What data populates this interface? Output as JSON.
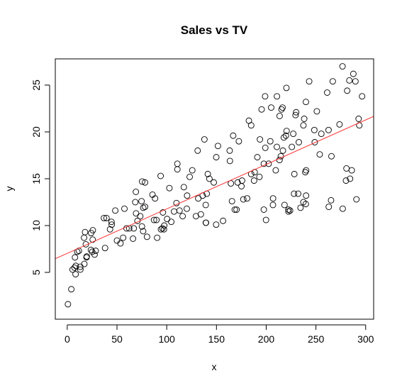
{
  "chart_data": {
    "type": "scatter",
    "title": "Sales vs TV",
    "xlabel": "x",
    "ylabel": "y",
    "xlim": [
      -12,
      308
    ],
    "ylim": [
      0,
      27.8
    ],
    "x_ticks": [
      0,
      50,
      100,
      150,
      200,
      250,
      300
    ],
    "y_ticks": [
      5,
      10,
      15,
      20,
      25
    ],
    "grid": false,
    "legend": "none",
    "point_style": "open-circle",
    "point_color": "#000000",
    "fit_line": {
      "intercept": 7.03,
      "slope": 0.0475,
      "color": "#ff3030"
    },
    "points": [
      [
        0.7,
        1.6
      ],
      [
        4.1,
        3.2
      ],
      [
        5.4,
        5.3
      ],
      [
        7.3,
        5.5
      ],
      [
        7.8,
        6.6
      ],
      [
        8.4,
        4.8
      ],
      [
        8.6,
        5.7
      ],
      [
        10.1,
        7.2
      ],
      [
        11.7,
        7.3
      ],
      [
        13.1,
        5.6
      ],
      [
        13.2,
        5.3
      ],
      [
        16.9,
        8.7
      ],
      [
        17.2,
        5.9
      ],
      [
        17.9,
        9.3
      ],
      [
        18.7,
        8.0
      ],
      [
        19.4,
        6.6
      ],
      [
        19.6,
        6.7
      ],
      [
        23.8,
        7.4
      ],
      [
        24.0,
        9.2
      ],
      [
        25.1,
        7.2
      ],
      [
        25.6,
        8.5
      ],
      [
        25.7,
        9.5
      ],
      [
        27.5,
        6.9
      ],
      [
        28.6,
        7.3
      ],
      [
        36.9,
        10.8
      ],
      [
        38.0,
        7.6
      ],
      [
        39.5,
        10.8
      ],
      [
        43.0,
        9.6
      ],
      [
        44.5,
        10.4
      ],
      [
        44.7,
        10.1
      ],
      [
        48.3,
        11.6
      ],
      [
        50.0,
        8.4
      ],
      [
        53.5,
        8.1
      ],
      [
        56.2,
        8.7
      ],
      [
        57.5,
        11.8
      ],
      [
        59.6,
        9.7
      ],
      [
        62.3,
        9.7
      ],
      [
        66.1,
        8.6
      ],
      [
        66.9,
        9.7
      ],
      [
        68.4,
        12.5
      ],
      [
        69.0,
        13.6
      ],
      [
        69.2,
        11.3
      ],
      [
        70.6,
        10.5
      ],
      [
        73.4,
        11.0
      ],
      [
        74.7,
        12.6
      ],
      [
        75.1,
        9.9
      ],
      [
        75.3,
        14.7
      ],
      [
        76.3,
        9.4
      ],
      [
        76.4,
        11.9
      ],
      [
        78.2,
        12.0
      ],
      [
        78.2,
        14.6
      ],
      [
        80.2,
        8.8
      ],
      [
        85.7,
        13.3
      ],
      [
        87.2,
        10.6
      ],
      [
        88.3,
        12.9
      ],
      [
        89.7,
        10.6
      ],
      [
        90.4,
        8.7
      ],
      [
        93.9,
        15.3
      ],
      [
        94.2,
        9.6
      ],
      [
        95.7,
        9.7
      ],
      [
        96.2,
        11.4
      ],
      [
        97.2,
        9.6
      ],
      [
        97.5,
        10.0
      ],
      [
        100.4,
        10.7
      ],
      [
        102.7,
        14.0
      ],
      [
        104.6,
        10.4
      ],
      [
        107.4,
        11.5
      ],
      [
        109.8,
        12.4
      ],
      [
        110.7,
        16.0
      ],
      [
        110.7,
        16.6
      ],
      [
        112.9,
        11.6
      ],
      [
        116.0,
        11.0
      ],
      [
        117.2,
        14.1
      ],
      [
        120.2,
        11.8
      ],
      [
        120.5,
        13.2
      ],
      [
        123.1,
        15.2
      ],
      [
        125.7,
        15.9
      ],
      [
        129.4,
        11.0
      ],
      [
        131.1,
        18.0
      ],
      [
        131.7,
        12.9
      ],
      [
        134.3,
        11.2
      ],
      [
        136.2,
        13.2
      ],
      [
        137.9,
        19.2
      ],
      [
        139.2,
        12.2
      ],
      [
        139.3,
        10.3
      ],
      [
        139.5,
        10.3
      ],
      [
        140.3,
        13.4
      ],
      [
        141.3,
        15.5
      ],
      [
        142.9,
        15.0
      ],
      [
        147.3,
        14.6
      ],
      [
        149.7,
        10.1
      ],
      [
        149.8,
        17.3
      ],
      [
        151.5,
        18.5
      ],
      [
        156.6,
        10.5
      ],
      [
        163.3,
        18.0
      ],
      [
        163.5,
        16.9
      ],
      [
        164.5,
        14.5
      ],
      [
        165.6,
        12.6
      ],
      [
        166.8,
        19.6
      ],
      [
        168.4,
        11.7
      ],
      [
        170.2,
        11.7
      ],
      [
        171.3,
        14.6
      ],
      [
        172.5,
        19.0
      ],
      [
        175.1,
        14.2
      ],
      [
        175.7,
        14.8
      ],
      [
        177.0,
        12.8
      ],
      [
        180.8,
        12.9
      ],
      [
        182.6,
        21.2
      ],
      [
        184.9,
        15.5
      ],
      [
        184.9,
        20.7
      ],
      [
        187.8,
        14.8
      ],
      [
        188.4,
        15.7
      ],
      [
        191.1,
        17.3
      ],
      [
        193.2,
        15.2
      ],
      [
        193.7,
        19.2
      ],
      [
        195.4,
        22.4
      ],
      [
        197.6,
        16.6
      ],
      [
        197.6,
        11.7
      ],
      [
        198.9,
        23.8
      ],
      [
        199.1,
        18.3
      ],
      [
        199.8,
        10.6
      ],
      [
        202.5,
        16.6
      ],
      [
        204.1,
        19.0
      ],
      [
        205.0,
        22.6
      ],
      [
        206.8,
        12.2
      ],
      [
        206.9,
        12.9
      ],
      [
        209.6,
        15.9
      ],
      [
        210.7,
        18.4
      ],
      [
        210.8,
        23.8
      ],
      [
        213.4,
        17.0
      ],
      [
        213.5,
        21.7
      ],
      [
        214.7,
        17.4
      ],
      [
        215.4,
        22.4
      ],
      [
        216.4,
        22.6
      ],
      [
        216.8,
        18.0
      ],
      [
        217.7,
        19.4
      ],
      [
        218.4,
        12.2
      ],
      [
        219.8,
        19.6
      ],
      [
        220.3,
        24.7
      ],
      [
        220.5,
        20.1
      ],
      [
        222.4,
        11.7
      ],
      [
        222.4,
        11.5
      ],
      [
        224.0,
        11.6
      ],
      [
        225.8,
        18.4
      ],
      [
        227.2,
        19.8
      ],
      [
        228.0,
        13.4
      ],
      [
        228.3,
        15.5
      ],
      [
        229.5,
        21.8
      ],
      [
        230.1,
        22.1
      ],
      [
        232.1,
        13.4
      ],
      [
        232.8,
        18.9
      ],
      [
        234.5,
        11.9
      ],
      [
        237.4,
        12.5
      ],
      [
        237.4,
        20.7
      ],
      [
        238.2,
        21.4
      ],
      [
        239.3,
        15.7
      ],
      [
        239.8,
        12.3
      ],
      [
        239.9,
        23.2
      ],
      [
        240.1,
        13.2
      ],
      [
        240.1,
        15.9
      ],
      [
        243.2,
        25.4
      ],
      [
        248.4,
        20.2
      ],
      [
        248.8,
        18.9
      ],
      [
        250.9,
        22.2
      ],
      [
        253.8,
        17.6
      ],
      [
        255.4,
        19.8
      ],
      [
        261.3,
        24.2
      ],
      [
        262.7,
        20.2
      ],
      [
        262.9,
        12.0
      ],
      [
        265.2,
        12.7
      ],
      [
        265.6,
        17.4
      ],
      [
        266.9,
        25.4
      ],
      [
        273.7,
        20.8
      ],
      [
        276.7,
        27.0
      ],
      [
        276.9,
        11.8
      ],
      [
        280.2,
        14.8
      ],
      [
        280.7,
        16.1
      ],
      [
        281.4,
        24.4
      ],
      [
        283.6,
        25.5
      ],
      [
        284.3,
        15.0
      ],
      [
        286.0,
        15.9
      ],
      [
        287.6,
        26.2
      ],
      [
        289.7,
        25.4
      ],
      [
        290.7,
        12.8
      ],
      [
        292.9,
        21.4
      ],
      [
        293.6,
        20.7
      ],
      [
        296.4,
        23.8
      ]
    ]
  }
}
